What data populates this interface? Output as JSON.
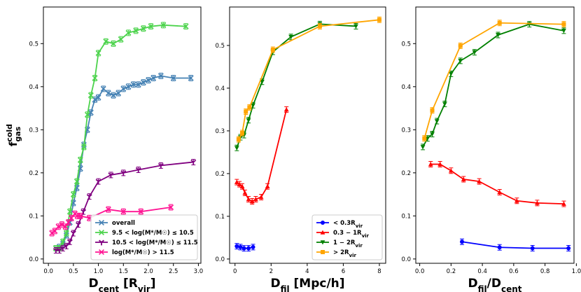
{
  "chart_data": [
    {
      "type": "line",
      "title": "",
      "xlabel": "D_cent [R_vir]",
      "ylabel": "f_gas^cold",
      "xlim": [
        -0.1,
        3.05
      ],
      "ylim": [
        -0.01,
        0.585
      ],
      "xticks": [
        0.0,
        0.5,
        1.0,
        1.5,
        2.0,
        2.5,
        3.0
      ],
      "yticks": [
        0.0,
        0.1,
        0.2,
        0.3,
        0.4,
        0.5
      ],
      "grid": false,
      "legend": {
        "position": "lower-right"
      },
      "series": [
        {
          "name": "overall",
          "color": "#4682b4",
          "marker": "x",
          "x": [
            0.15,
            0.22,
            0.29,
            0.36,
            0.43,
            0.5,
            0.57,
            0.64,
            0.71,
            0.78,
            0.85,
            0.93,
            1.0,
            1.1,
            1.2,
            1.3,
            1.4,
            1.5,
            1.6,
            1.7,
            1.8,
            1.9,
            2.0,
            2.1,
            2.25,
            2.5,
            2.85
          ],
          "y": [
            0.025,
            0.028,
            0.035,
            0.055,
            0.085,
            0.13,
            0.165,
            0.21,
            0.265,
            0.3,
            0.34,
            0.37,
            0.375,
            0.395,
            0.385,
            0.38,
            0.385,
            0.395,
            0.4,
            0.405,
            0.405,
            0.41,
            0.415,
            0.42,
            0.425,
            0.42,
            0.42
          ]
        },
        {
          "name": "9.5 < log(M*/M☉) ≤ 10.5",
          "color": "#4cd34c",
          "marker": "x",
          "x": [
            0.15,
            0.22,
            0.29,
            0.36,
            0.43,
            0.5,
            0.57,
            0.64,
            0.71,
            0.78,
            0.85,
            0.93,
            1.0,
            1.15,
            1.3,
            1.45,
            1.6,
            1.75,
            1.9,
            2.05,
            2.3,
            2.75
          ],
          "y": [
            0.025,
            0.025,
            0.04,
            0.06,
            0.11,
            0.15,
            0.18,
            0.23,
            0.26,
            0.335,
            0.38,
            0.42,
            0.478,
            0.505,
            0.5,
            0.51,
            0.525,
            0.53,
            0.535,
            0.54,
            0.543,
            0.54
          ]
        },
        {
          "name": "10.5 < log(M*/M☉) ≤ 11.5",
          "color": "#800080",
          "marker": "1",
          "x": [
            0.15,
            0.22,
            0.29,
            0.36,
            0.43,
            0.5,
            0.6,
            0.7,
            0.82,
            1.0,
            1.25,
            1.5,
            1.8,
            2.25,
            2.9
          ],
          "y": [
            0.02,
            0.02,
            0.025,
            0.03,
            0.04,
            0.06,
            0.08,
            0.11,
            0.145,
            0.18,
            0.195,
            0.2,
            0.207,
            0.217,
            0.225
          ]
        },
        {
          "name": "log(M*/M☉) > 11.5",
          "color": "#ff1493",
          "marker": "x",
          "x": [
            0.07,
            0.13,
            0.2,
            0.27,
            0.34,
            0.4,
            0.46,
            0.53,
            0.58,
            0.64,
            0.82,
            1.2,
            1.5,
            1.85,
            2.45
          ],
          "y": [
            0.06,
            0.065,
            0.075,
            0.08,
            0.075,
            0.085,
            0.095,
            0.105,
            0.1,
            0.1,
            0.095,
            0.115,
            0.11,
            0.11,
            0.12
          ]
        }
      ]
    },
    {
      "type": "line",
      "title": "",
      "xlabel": "D_fil [Mpc/h]",
      "ylabel": "",
      "xlim": [
        -0.3,
        8.35
      ],
      "ylim": [
        -0.01,
        0.59
      ],
      "xticks": [
        0,
        2,
        4,
        6,
        8
      ],
      "yticks": [
        0.0,
        0.1,
        0.2,
        0.3,
        0.4,
        0.5
      ],
      "grid": false,
      "legend": {
        "position": "lower-right"
      },
      "series": [
        {
          "name": "< 0.3R_vir",
          "color": "#0000ff",
          "marker": "o",
          "x": [
            0.1,
            0.3,
            0.5,
            0.75,
            1.0
          ],
          "y": [
            0.03,
            0.028,
            0.025,
            0.025,
            0.028
          ]
        },
        {
          "name": "0.3 − 1R_vir",
          "color": "#ff0000",
          "marker": "^",
          "x": [
            0.1,
            0.25,
            0.4,
            0.55,
            0.75,
            0.95,
            1.15,
            1.45,
            1.8,
            2.85
          ],
          "y": [
            0.18,
            0.175,
            0.17,
            0.155,
            0.14,
            0.135,
            0.14,
            0.145,
            0.17,
            0.35
          ]
        },
        {
          "name": "1 − 2R_vir",
          "color": "#008000",
          "marker": "v",
          "x": [
            0.1,
            0.3,
            0.5,
            0.75,
            1.0,
            1.5,
            2.1,
            3.1,
            4.7,
            6.7
          ],
          "y": [
            0.26,
            0.285,
            0.29,
            0.325,
            0.36,
            0.415,
            0.485,
            0.52,
            0.55,
            0.545
          ]
        },
        {
          "name": "> 2R_vir",
          "color": "#ffa500",
          "marker": "s",
          "x": [
            0.2,
            0.4,
            0.6,
            0.8,
            2.1,
            4.7,
            8.0
          ],
          "y": [
            0.28,
            0.295,
            0.345,
            0.355,
            0.49,
            0.545,
            0.56
          ]
        }
      ]
    },
    {
      "type": "line",
      "title": "",
      "xlabel": "D_fil/D_cent",
      "ylabel": "",
      "xlim": [
        -0.025,
        0.985
      ],
      "ylim": [
        -0.01,
        0.585
      ],
      "xticks": [
        0.0,
        0.2,
        0.4,
        0.6,
        0.8,
        1.0
      ],
      "yticks": [
        0.0,
        0.1,
        0.2,
        0.3,
        0.4,
        0.5
      ],
      "grid": false,
      "legend": null,
      "series": [
        {
          "name": "< 0.3R_vir",
          "color": "#0000ff",
          "marker": "o",
          "x": [
            0.27,
            0.51,
            0.72,
            0.95
          ],
          "y": [
            0.04,
            0.027,
            0.025,
            0.025
          ]
        },
        {
          "name": "0.3 − 1R_vir",
          "color": "#ff0000",
          "marker": "^",
          "x": [
            0.07,
            0.13,
            0.2,
            0.28,
            0.38,
            0.51,
            0.62,
            0.75,
            0.92
          ],
          "y": [
            0.22,
            0.22,
            0.205,
            0.185,
            0.18,
            0.155,
            0.135,
            0.13,
            0.128
          ]
        },
        {
          "name": "1 − 2R_vir",
          "color": "#008000",
          "marker": "v",
          "x": [
            0.02,
            0.05,
            0.08,
            0.11,
            0.16,
            0.2,
            0.26,
            0.35,
            0.5,
            0.7,
            0.92
          ],
          "y": [
            0.26,
            0.28,
            0.29,
            0.32,
            0.36,
            0.43,
            0.46,
            0.48,
            0.52,
            0.545,
            0.53
          ]
        },
        {
          "name": "> 2R_vir",
          "color": "#ffa500",
          "marker": "s",
          "x": [
            0.03,
            0.08,
            0.26,
            0.51,
            0.92
          ],
          "y": [
            0.28,
            0.345,
            0.495,
            0.548,
            0.545
          ]
        }
      ]
    }
  ]
}
